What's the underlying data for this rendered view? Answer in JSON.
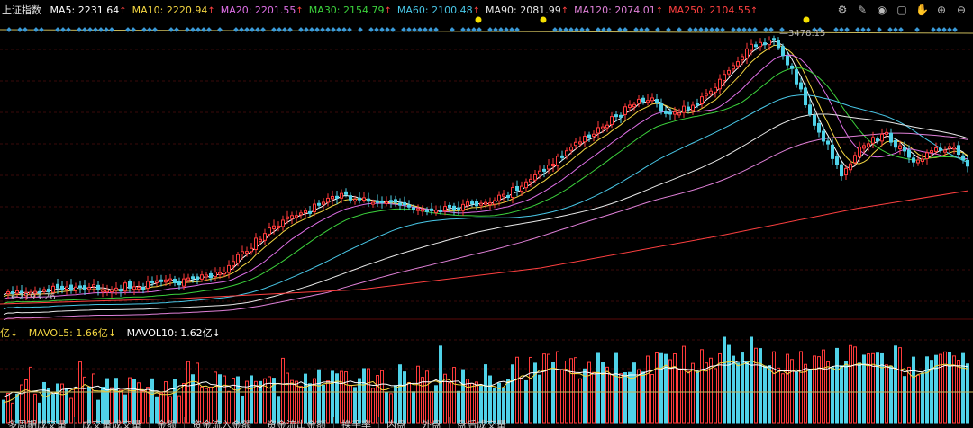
{
  "header": {
    "title": "上证指数",
    "ma": [
      {
        "label": "MA5",
        "value": "2231.64",
        "color": "#ffffff"
      },
      {
        "label": "MA10",
        "value": "2220.94",
        "color": "#f5d742"
      },
      {
        "label": "MA20",
        "value": "2201.55",
        "color": "#e070e8"
      },
      {
        "label": "MA30",
        "value": "2154.79",
        "color": "#3cd23c"
      },
      {
        "label": "MA60",
        "value": "2100.48",
        "color": "#49c8e8"
      },
      {
        "label": "MA90",
        "value": "2081.99",
        "color": "#e8e8e8"
      },
      {
        "label": "MA120",
        "value": "2074.01",
        "color": "#e080d8"
      },
      {
        "label": "MA250",
        "value": "2104.55",
        "color": "#ff4040"
      }
    ],
    "arrow": "↑",
    "arrow_color": "#ff4040"
  },
  "chart_data": {
    "type": "candlestick",
    "annotations": {
      "high_label": "3478.15",
      "low_label": "2193.26"
    },
    "volume_header": {
      "unit_prefix": "亿↓",
      "mavol5": "MAVOL5: 1.66亿↓",
      "mavol10": "MAVOL10: 1.62亿↓",
      "mavol5_color": "#f5d742",
      "mavol10_color": "#ffffff"
    }
  },
  "bottom_tabs": [
    "多周期成交量",
    "成交量成交量",
    "金额",
    "资金流入金额",
    "资金流出金额",
    "换手率",
    "内盘",
    "外盘",
    "盘后成交量"
  ],
  "colors": {
    "up": "#ff3b3b",
    "down": "#4fd2e8",
    "bg": "#000000",
    "grid": "#3a0a0a"
  }
}
